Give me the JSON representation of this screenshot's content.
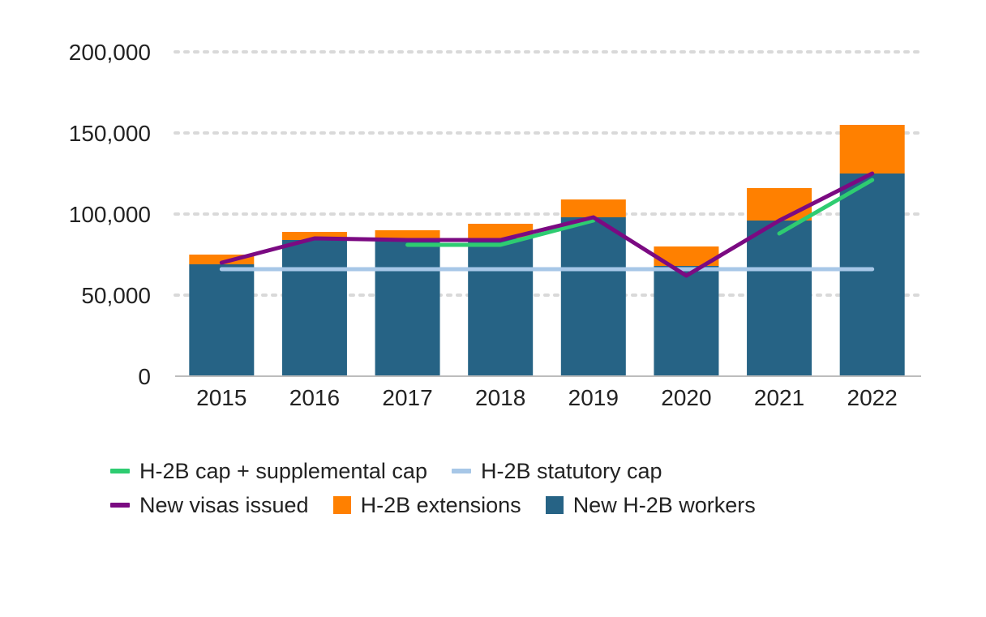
{
  "chart_data": {
    "type": "bar",
    "title": "",
    "xlabel": "",
    "ylabel": "",
    "ylim": [
      0,
      200000
    ],
    "yticks": [
      0,
      50000,
      100000,
      150000,
      200000
    ],
    "ytick_labels": [
      "0",
      "50,000",
      "100,000",
      "150,000",
      "200,000"
    ],
    "categories": [
      "2015",
      "2016",
      "2017",
      "2018",
      "2019",
      "2020",
      "2021",
      "2022"
    ],
    "stacked_bars": [
      {
        "name": "New H-2B workers",
        "color": "#266385",
        "values": [
          69000,
          84000,
          84000,
          85000,
          98000,
          68000,
          96000,
          125000
        ]
      },
      {
        "name": "H-2B extensions",
        "color": "#ff8000",
        "values": [
          6000,
          5000,
          6000,
          9000,
          11000,
          12000,
          20000,
          30000
        ]
      }
    ],
    "lines": [
      {
        "name": "H-2B cap + supplemental cap",
        "color": "#2ecc71",
        "values": [
          null,
          null,
          81000,
          81000,
          96000,
          null,
          88000,
          121000
        ]
      },
      {
        "name": "H-2B statutory cap",
        "color": "#a7c7e7",
        "values": [
          66000,
          66000,
          66000,
          66000,
          66000,
          66000,
          66000,
          66000
        ]
      },
      {
        "name": "New visas issued",
        "color": "#7b0a82",
        "values": [
          70000,
          85000,
          84000,
          84000,
          98000,
          62000,
          96000,
          125000
        ]
      }
    ],
    "grid": true,
    "legend": [
      [
        {
          "label": "H-2B cap + supplemental cap",
          "kind": "line",
          "color": "#2ecc71"
        },
        {
          "label": "H-2B statutory cap",
          "kind": "line",
          "color": "#a7c7e7"
        }
      ],
      [
        {
          "label": "New visas issued",
          "kind": "line",
          "color": "#7b0a82"
        },
        {
          "label": "H-2B extensions",
          "kind": "box",
          "color": "#ff8000"
        },
        {
          "label": "New H-2B workers",
          "kind": "box",
          "color": "#266385"
        }
      ]
    ],
    "legend_position": "bottom"
  }
}
